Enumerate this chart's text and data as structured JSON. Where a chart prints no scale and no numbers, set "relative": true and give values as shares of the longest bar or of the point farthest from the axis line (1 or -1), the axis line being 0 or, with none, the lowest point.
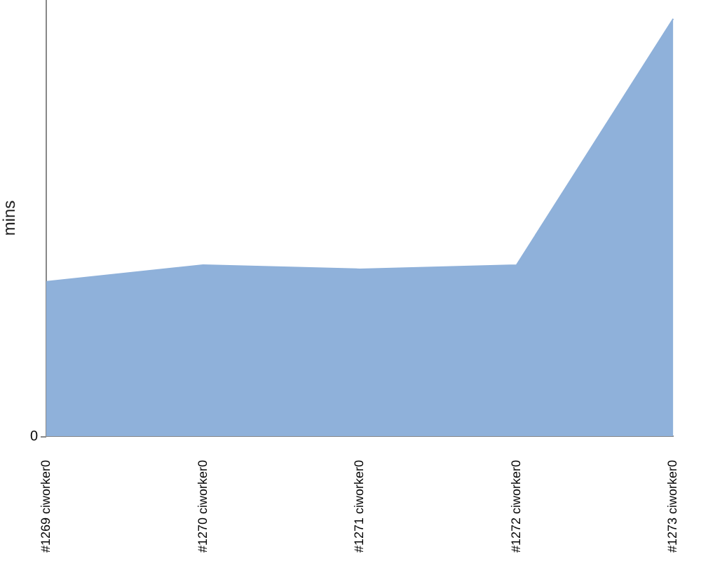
{
  "chart_data": {
    "type": "area",
    "ylabel": "mins",
    "categories": [
      "#1269 ciworker0",
      "#1270 ciworker0",
      "#1271 ciworker0",
      "#1272 ciworker0",
      "#1273 ciworker0"
    ],
    "values": [
      0.37,
      0.41,
      0.4,
      0.41,
      1
    ],
    "color": "#8fb1da",
    "relative": true,
    "annotations": [
      "0"
    ]
  }
}
